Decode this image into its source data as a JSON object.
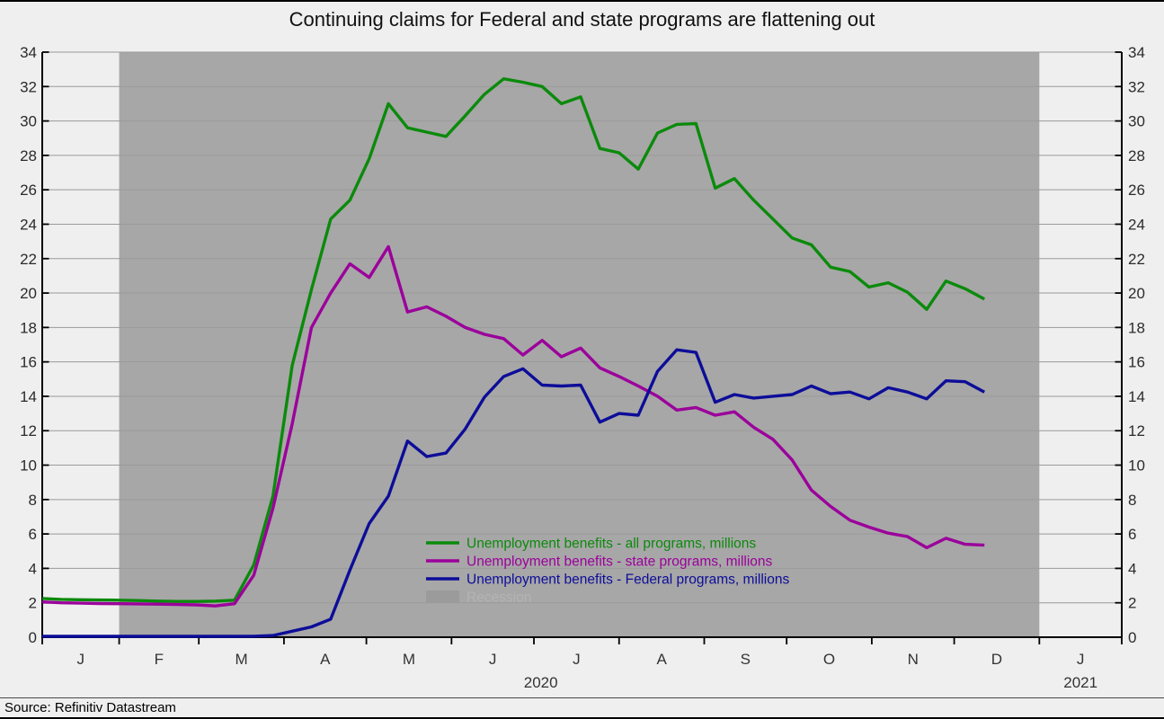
{
  "title": "Continuing claims for Federal and state programs are flattening out",
  "source": "Source: Refinitiv Datastream",
  "colors": {
    "page_bg": "#efefef",
    "recession_band": "#a7a7a7",
    "gridline": "#9a9a9a",
    "axis": "#000000",
    "tick_label": "#2b2b2b",
    "recession_swatch": "#9b9b9b",
    "recession_label_text": "#b4b4b4"
  },
  "chart_data": {
    "type": "line",
    "title": "Continuing claims for Federal and state programs are flattening out",
    "xlabel": "",
    "ylabel": "",
    "y_axis": {
      "min": 0,
      "max": 34,
      "step": 2,
      "tick_labels": [
        "0",
        "2",
        "4",
        "6",
        "8",
        "10",
        "12",
        "14",
        "16",
        "18",
        "20",
        "22",
        "24",
        "26",
        "28",
        "30",
        "32",
        "34"
      ],
      "shown_on_both_sides": true
    },
    "x_axis": {
      "month_labels": [
        "J",
        "F",
        "M",
        "A",
        "M",
        "J",
        "J",
        "A",
        "S",
        "O",
        "N",
        "D",
        "J"
      ],
      "year_labels": [
        "2020",
        "2021"
      ],
      "domain_days": [
        0,
        393
      ],
      "month_tick_days": [
        0,
        28,
        57,
        88,
        118,
        149,
        179,
        210,
        241,
        271,
        302,
        332,
        363,
        393
      ],
      "month_label_mid_days": [
        14,
        42.5,
        72.5,
        103,
        133.5,
        164,
        194.5,
        225.5,
        256,
        286.5,
        317,
        347.5,
        378
      ],
      "year_label_days": [
        181.5,
        378
      ]
    },
    "weeks": [
      "Jan 4",
      "Jan 11",
      "Jan 18",
      "Jan 25",
      "Feb 1",
      "Feb 8",
      "Feb 15",
      "Feb 22",
      "Feb 29",
      "Mar 7",
      "Mar 14",
      "Mar 21",
      "Mar 28",
      "Apr 4",
      "Apr 11",
      "Apr 18",
      "Apr 25",
      "May 2",
      "May 9",
      "May 16",
      "May 23",
      "May 30",
      "Jun 6",
      "Jun 13",
      "Jun 20",
      "Jun 27",
      "Jul 4",
      "Jul 11",
      "Jul 18",
      "Jul 25",
      "Aug 1",
      "Aug 8",
      "Aug 15",
      "Aug 22",
      "Aug 29",
      "Sep 5",
      "Sep 12",
      "Sep 19",
      "Sep 26",
      "Oct 3",
      "Oct 10",
      "Oct 17",
      "Oct 24",
      "Oct 31",
      "Nov 7",
      "Nov 14",
      "Nov 21",
      "Nov 28",
      "Dec 5",
      "Dec 12"
    ],
    "series": [
      {
        "name": "Unemployment benefits - all programs, millions",
        "color": "#0b8a0b",
        "values": [
          2.25,
          2.2,
          2.18,
          2.16,
          2.15,
          2.13,
          2.1,
          2.08,
          2.08,
          2.1,
          2.15,
          4.2,
          8.2,
          15.8,
          20.2,
          24.3,
          25.4,
          27.8,
          31.0,
          29.6,
          29.35,
          29.1,
          30.3,
          31.55,
          32.45,
          32.25,
          32.0,
          31.0,
          31.4,
          28.4,
          28.15,
          27.2,
          29.3,
          29.8,
          29.85,
          26.1,
          26.65,
          25.4,
          24.3,
          23.2,
          22.8,
          21.5,
          21.25,
          20.35,
          20.6,
          20.05,
          19.05,
          20.7,
          20.25,
          19.65
        ]
      },
      {
        "name": "Unemployment benefits - state programs, millions",
        "color": "#9b009b",
        "values": [
          2.05,
          2.0,
          1.98,
          1.96,
          1.95,
          1.94,
          1.92,
          1.9,
          1.88,
          1.82,
          1.95,
          3.6,
          7.5,
          12.4,
          18.0,
          20.0,
          21.7,
          20.9,
          22.7,
          18.9,
          19.2,
          18.65,
          18.0,
          17.6,
          17.35,
          16.4,
          17.25,
          16.3,
          16.8,
          15.65,
          15.15,
          14.6,
          14.0,
          13.2,
          13.35,
          12.9,
          13.1,
          12.2,
          11.5,
          10.3,
          8.55,
          7.6,
          6.8,
          6.4,
          6.05,
          5.85,
          5.2,
          5.75,
          5.4,
          5.35
        ]
      },
      {
        "name": "Unemployment benefits - Federal programs, millions",
        "color": "#0d0d99",
        "values": [
          0.05,
          0.05,
          0.05,
          0.05,
          0.05,
          0.05,
          0.05,
          0.05,
          0.05,
          0.05,
          0.05,
          0.06,
          0.1,
          0.35,
          0.6,
          1.05,
          3.9,
          6.6,
          8.2,
          11.4,
          10.5,
          10.7,
          12.1,
          13.95,
          15.15,
          15.6,
          14.65,
          14.6,
          14.65,
          12.5,
          13.0,
          12.9,
          15.45,
          16.7,
          16.55,
          13.65,
          14.1,
          13.9,
          14.0,
          14.1,
          14.6,
          14.15,
          14.25,
          13.85,
          14.5,
          14.25,
          13.85,
          14.9,
          14.85,
          14.25
        ]
      }
    ],
    "recession": {
      "label": "Recession",
      "start_day": 28,
      "end_day": 363
    },
    "legend_position": "inside-bottom-center",
    "grid": true
  }
}
